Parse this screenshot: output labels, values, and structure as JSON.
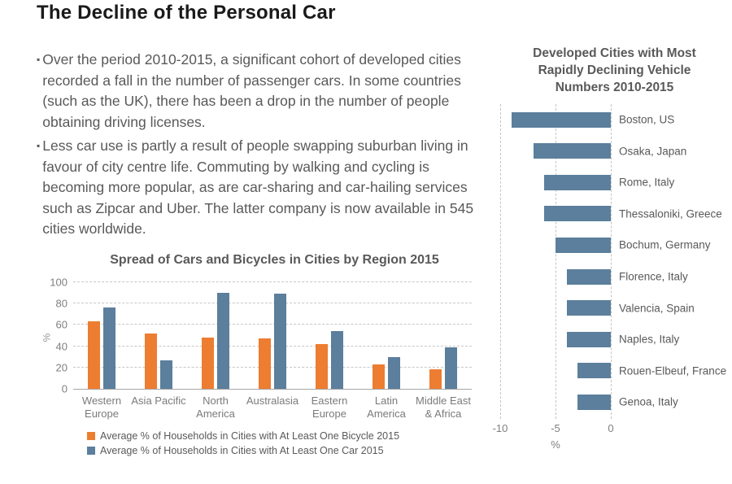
{
  "page": {
    "title": "The Decline of the Personal Car"
  },
  "bullets": [
    "Over the period 2010-2015, a significant cohort of developed cities recorded a fall in the number of passenger cars. In some countries (such as the UK), there has been a drop in the number of people obtaining driving licenses.",
    "Less car use is partly a result of people swapping suburban living in favour of city centre life. Commuting by walking and cycling is becoming more popular, as are car-sharing and car-hailing services such as Zipcar and Uber. The latter company is now available in 545 cities worldwide."
  ],
  "colors": {
    "bicycle_orange": "#ED7D31",
    "car_blue": "#5B7F9C",
    "body_text": "#595959",
    "axis_text": "#7F7F7F"
  },
  "chart_data": [
    {
      "type": "bar",
      "title": "Spread of Cars and Bicycles in Cities by Region 2015",
      "categories": [
        "Western Europe",
        "Asia Pacific",
        "North America",
        "Australasia",
        "Eastern Europe",
        "Latin America",
        "Middle East & Africa"
      ],
      "series": [
        {
          "name": "Average % of Households in Cities with At Least One Bicycle 2015",
          "color": "#ED7D31",
          "values": [
            63,
            52,
            48,
            47,
            42,
            23,
            18
          ]
        },
        {
          "name": "Average % of Households in Cities with At Least One Car 2015",
          "color": "#5B7F9C",
          "values": [
            76,
            27,
            90,
            89,
            54,
            30,
            39
          ]
        }
      ],
      "xlabel": "",
      "ylabel": "%",
      "ylim": [
        0,
        100
      ],
      "yticks": [
        0,
        20,
        40,
        60,
        80,
        100
      ],
      "grid": true,
      "legend_position": "bottom"
    },
    {
      "type": "bar",
      "orientation": "horizontal",
      "title": "Developed Cities with Most Rapidly Declining Vehicle Numbers 2010-2015",
      "categories": [
        "Boston, US",
        "Osaka, Japan",
        "Rome, Italy",
        "Thessaloniki, Greece",
        "Bochum, Germany",
        "Florence, Italy",
        "Valencia, Spain",
        "Naples, Italy",
        "Rouen-Elbeuf, France",
        "Genoa, Italy"
      ],
      "values": [
        -9,
        -7,
        -6,
        -6,
        -5,
        -4,
        -4,
        -4,
        -3,
        -3
      ],
      "xlabel": "%",
      "ylabel": "",
      "xlim": [
        -10,
        0
      ],
      "xticks": [
        -10,
        -5,
        0
      ],
      "bar_color": "#5B7F9C",
      "grid": true,
      "legend_position": "none"
    }
  ]
}
